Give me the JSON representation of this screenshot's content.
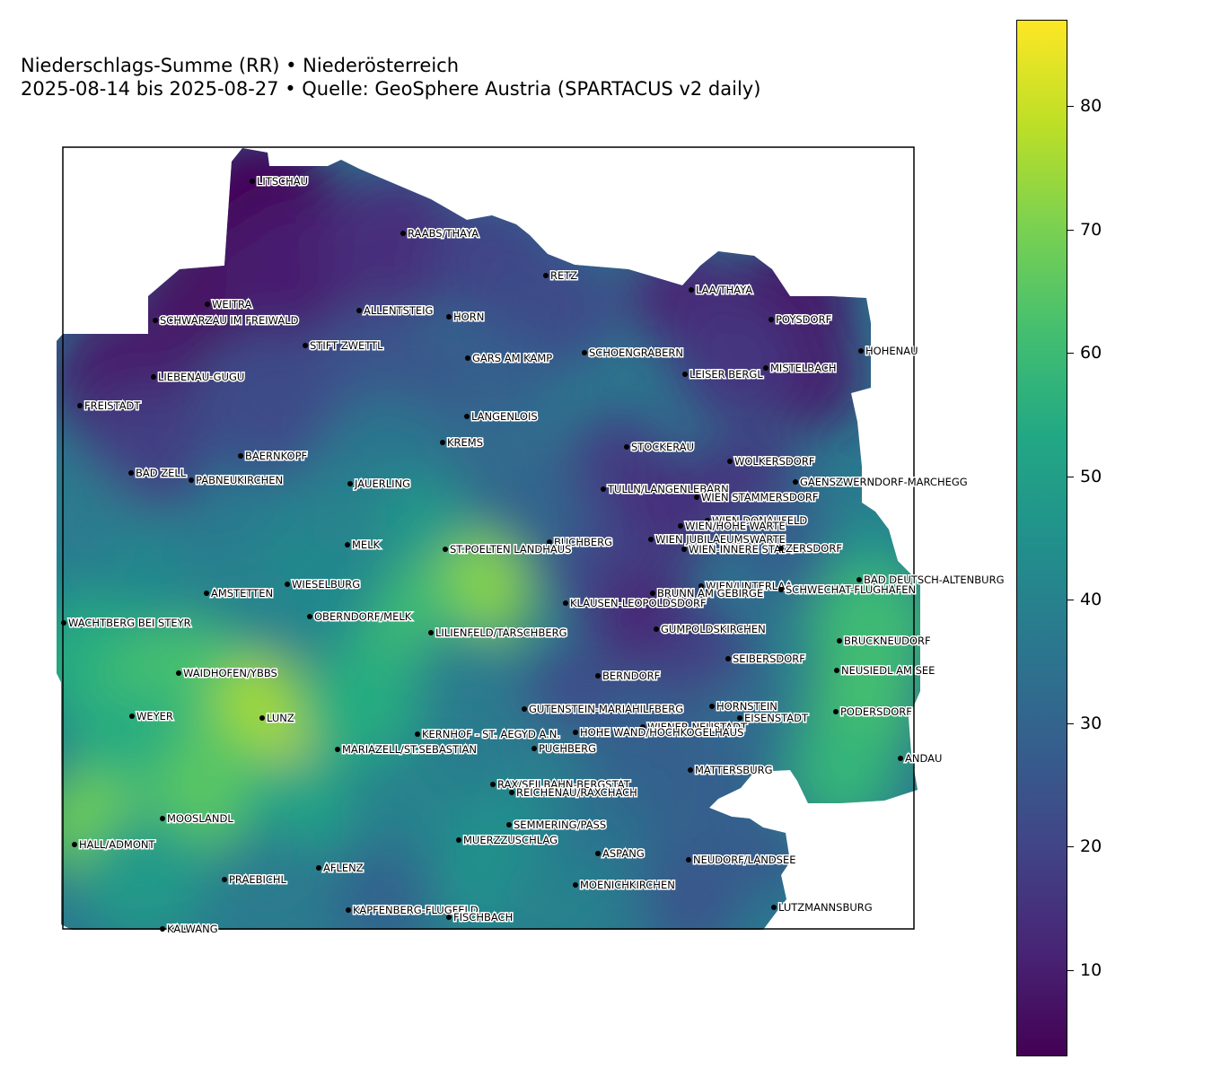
{
  "title": {
    "line1": "Niederschlags-Summe (RR) • Niederösterreich",
    "line2": "2025-08-14 bis 2025-08-27 • Quelle: GeoSphere Austria (SPARTACUS v2 daily)"
  },
  "colormap": {
    "name": "viridis",
    "range": [
      3,
      87
    ],
    "ticks": [
      "10",
      "20",
      "30",
      "40",
      "50",
      "60",
      "70",
      "80"
    ],
    "colors": [
      "#440154",
      "#482475",
      "#414487",
      "#355f8d",
      "#2a788e",
      "#21918c",
      "#22a884",
      "#44bf70",
      "#7ad151",
      "#bddf26",
      "#fde725"
    ]
  },
  "stations": [
    {
      "name": "LITSCHAU"
    },
    {
      "name": "RAABS/THAYA"
    },
    {
      "name": "RETZ"
    },
    {
      "name": "LAA/THAYA"
    },
    {
      "name": "WEITRA"
    },
    {
      "name": "ALLENTSTEIG"
    },
    {
      "name": "HORN"
    },
    {
      "name": "SCHWARZAU IM FREIWALD"
    },
    {
      "name": "POYSDORF"
    },
    {
      "name": "STIFT ZWETTL"
    },
    {
      "name": "SCHOENGRABERN"
    },
    {
      "name": "HOHENAU"
    },
    {
      "name": "GARS AM KAMP"
    },
    {
      "name": "MISTELBACH"
    },
    {
      "name": "LEISER BERGL"
    },
    {
      "name": "LIEBENAU-GUGU"
    },
    {
      "name": "FREISTADT"
    },
    {
      "name": "LANGENLOIS"
    },
    {
      "name": "KREMS"
    },
    {
      "name": "STOCKERAU"
    },
    {
      "name": "BAERNKOPF"
    },
    {
      "name": "WOLKERSDORF"
    },
    {
      "name": "BAD ZELL"
    },
    {
      "name": "PABNEUKIRCHEN"
    },
    {
      "name": "GAENSZWERNDORF-MARCHEGG"
    },
    {
      "name": "JAUERLING"
    },
    {
      "name": "TULLN/LANGENLEBARN"
    },
    {
      "name": "WIEN STAMMERSDORF"
    },
    {
      "name": "WIEN DONAUFELD"
    },
    {
      "name": "WIEN/HOHE WARTE"
    },
    {
      "name": "WIEN JUBILAEUMSWARTE"
    },
    {
      "name": "BUCHBERG"
    },
    {
      "name": "MELK"
    },
    {
      "name": "ST.POELTEN LANDHAUS"
    },
    {
      "name": "WIEN-INNERE STADT"
    },
    {
      "name": "ZERSDORF"
    },
    {
      "name": "BAD DEUTSCH-ALTENBURG"
    },
    {
      "name": "WIESELBURG"
    },
    {
      "name": "WIEN/UNTERLAA"
    },
    {
      "name": "AMSTETTEN"
    },
    {
      "name": "BRUNN AM GEBIRGE"
    },
    {
      "name": "SCHWECHAT-FLUGHAFEN"
    },
    {
      "name": "KLAUSEN-LEOPOLDSDORF"
    },
    {
      "name": "OBERNDORF/MELK"
    },
    {
      "name": "WACHTBERG BEI STEYR"
    },
    {
      "name": "GUMPOLDSKIRCHEN"
    },
    {
      "name": "LILIENFELD/TARSCHBERG"
    },
    {
      "name": "BRUCKNEUDORF"
    },
    {
      "name": "SEIBERSDORF"
    },
    {
      "name": "WAIDHOFEN/YBBS"
    },
    {
      "name": "NEUSIEDL AM SEE"
    },
    {
      "name": "BERNDORF"
    },
    {
      "name": "HORNSTEIN"
    },
    {
      "name": "GUTENSTEIN-MARIAHILFBERG"
    },
    {
      "name": "PODERSDORF"
    },
    {
      "name": "WEYER"
    },
    {
      "name": "LUNZ"
    },
    {
      "name": "EISENSTADT"
    },
    {
      "name": "WIENER NEUSTADT"
    },
    {
      "name": "KERNHOF - ST. AEGYD A.N."
    },
    {
      "name": "HOHE WAND/HOCHKOGELHAUS"
    },
    {
      "name": "MARIAZELL/ST.SEBASTIAN"
    },
    {
      "name": "PUCHBERG"
    },
    {
      "name": "ANDAU"
    },
    {
      "name": "MATTERSBURG"
    },
    {
      "name": "RAX/SEILBAHN-BERGSTAT"
    },
    {
      "name": "REICHENAU/RAXCHACH"
    },
    {
      "name": "MOOSLANDL"
    },
    {
      "name": "SEMMERING/PASS"
    },
    {
      "name": "HALL/ADMONT"
    },
    {
      "name": "MUERZZUSCHLAG"
    },
    {
      "name": "ASPANG"
    },
    {
      "name": "NEUDORF/LANDSEE"
    },
    {
      "name": "AFLENZ"
    },
    {
      "name": "PRAEBICHL"
    },
    {
      "name": "MOENICHKIRCHEN"
    },
    {
      "name": "LUTZMANNSBURG"
    },
    {
      "name": "KAPFENBERG-FLUGFELD"
    },
    {
      "name": "FISCHBACH"
    },
    {
      "name": "KALWANG"
    }
  ]
}
